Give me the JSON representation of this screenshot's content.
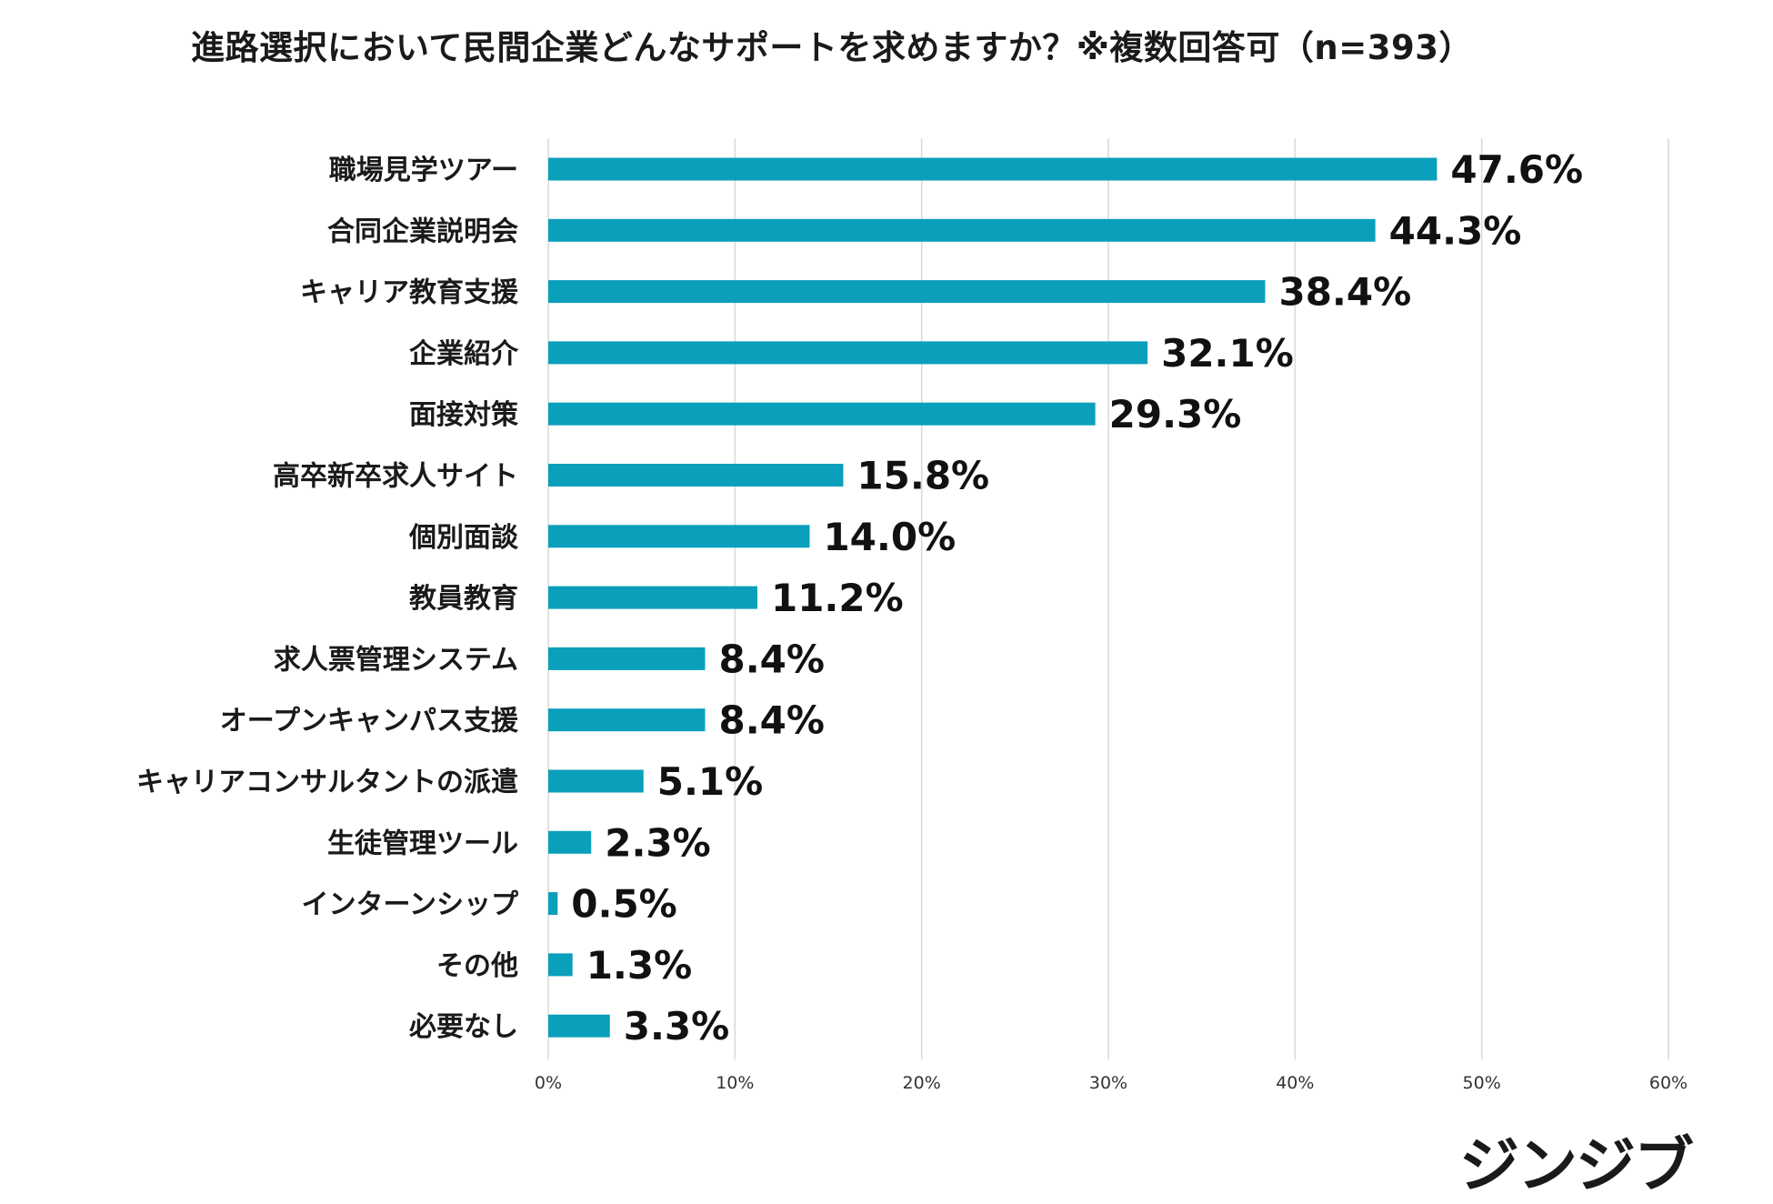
{
  "title": "進路選択において民間企業どんなサポートを求めますか？※複数回答可（n=393）",
  "brand": {
    "name": "ジンジブ"
  },
  "chart_data": {
    "type": "bar",
    "orientation": "horizontal",
    "title": "進路選択において民間企業どんなサポートを求めますか？※複数回答可（n=393）",
    "categories": [
      "職場見学ツアー",
      "合同企業説明会",
      "キャリア教育支援",
      "企業紹介",
      "面接対策",
      "高卒新卒求人サイト",
      "個別面談",
      "教員教育",
      "求人票管理システム",
      "オープンキャンパス支援",
      "キャリアコンサルタントの派遣",
      "生徒管理ツール",
      "インターンシップ",
      "その他",
      "必要なし"
    ],
    "values": [
      47.6,
      44.3,
      38.4,
      32.1,
      29.3,
      15.8,
      14.0,
      11.2,
      8.4,
      8.4,
      5.1,
      2.3,
      0.5,
      1.3,
      3.3
    ],
    "value_labels": [
      "47.6%",
      "44.3%",
      "38.4%",
      "32.1%",
      "29.3%",
      "15.8%",
      "14.0%",
      "11.2%",
      "8.4%",
      "8.4%",
      "5.1%",
      "2.3%",
      "0.5%",
      "1.3%",
      "3.3%"
    ],
    "xlim": [
      0,
      60
    ],
    "xticks": [
      "0%",
      "10%",
      "20%",
      "30%",
      "40%",
      "50%",
      "60%"
    ],
    "xlabel": "",
    "ylabel": "",
    "grid": true,
    "legend": "none",
    "bar_color": "#0a9fbb"
  }
}
